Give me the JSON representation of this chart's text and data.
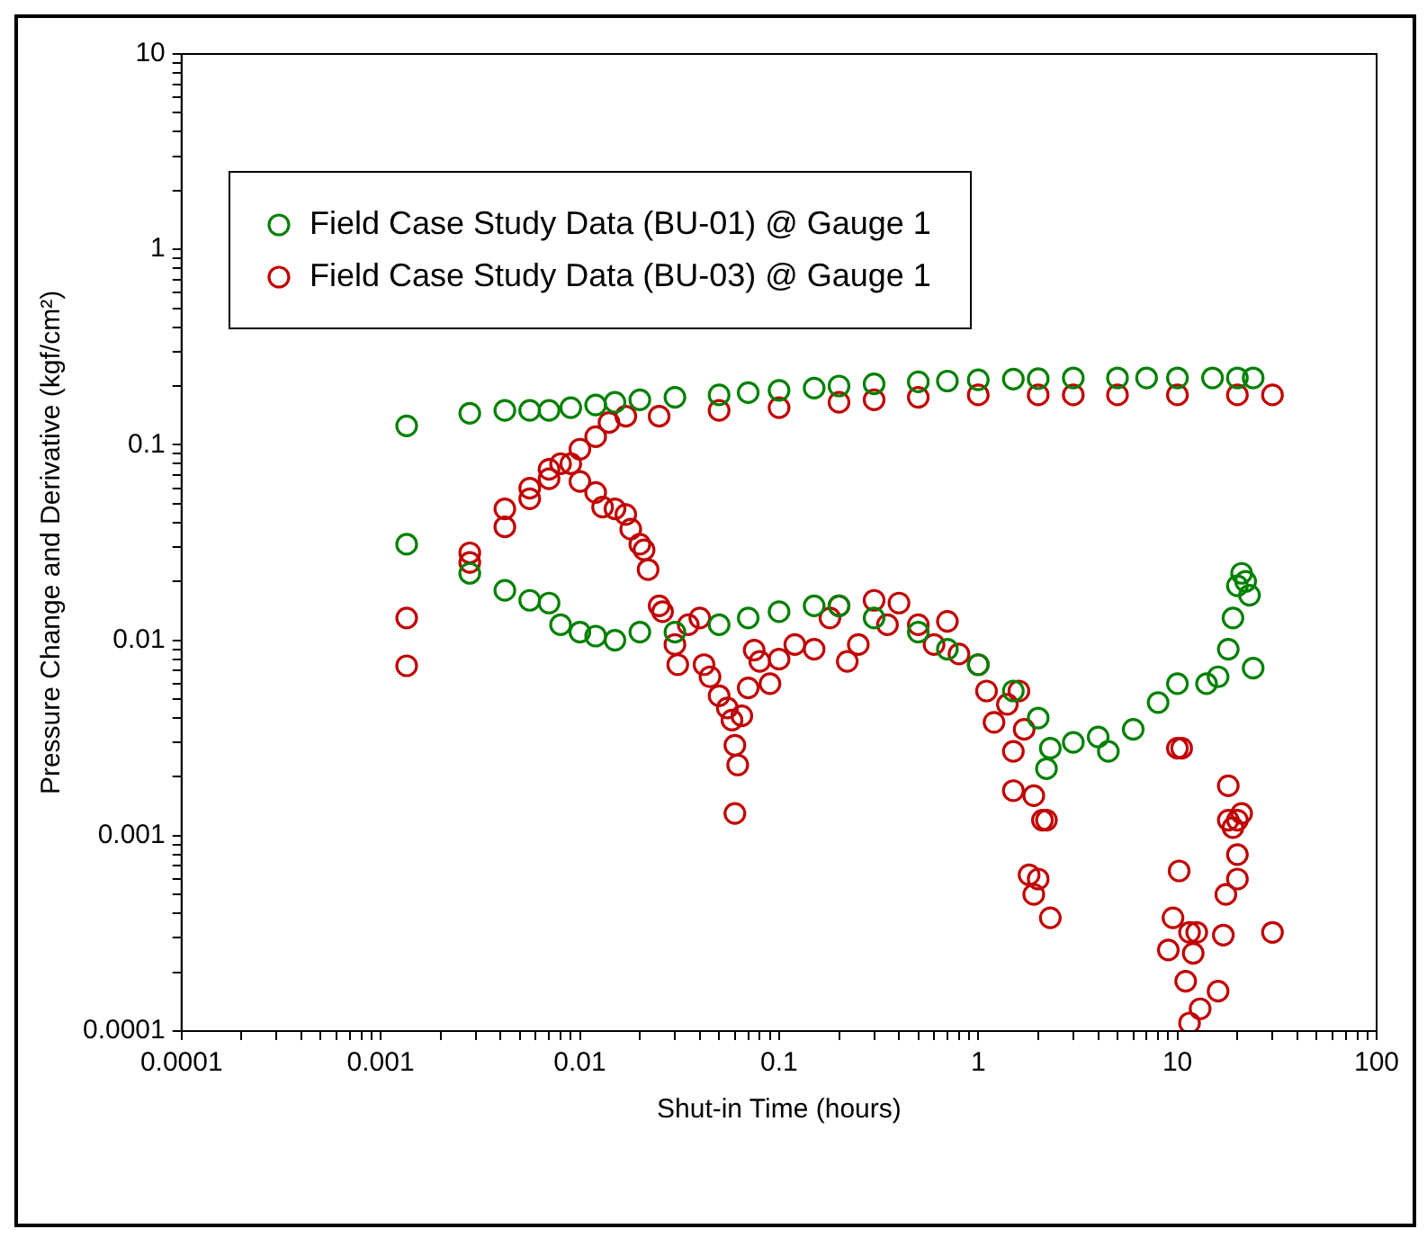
{
  "chart_data": {
    "type": "scatter",
    "xlabel": "Shut-in Time (hours)",
    "ylabel": "Pressure Change and Derivative (kgf/cm²)",
    "log": "xy",
    "grid": false,
    "legend": "top left",
    "marker": "circle",
    "xlim": [
      0.0001,
      100
    ],
    "ylim": [
      0.0001,
      10
    ],
    "xticks": [
      0.0001,
      {
        "value": 0.0002,
        "label": null
      },
      {
        "value": 0.0003,
        "label": null
      },
      {
        "value": 0.0004,
        "label": null
      },
      {
        "value": 0.0005,
        "label": null
      },
      {
        "value": 0.0006,
        "label": null
      },
      {
        "value": 0.0007,
        "label": null
      },
      {
        "value": 0.0008,
        "label": null
      },
      {
        "value": 0.0009,
        "label": null
      },
      0.001,
      {
        "value": 0.002,
        "label": null
      },
      {
        "value": 0.003,
        "label": null
      },
      {
        "value": 0.004,
        "label": null
      },
      {
        "value": 0.005,
        "label": null
      },
      {
        "value": 0.006,
        "label": null
      },
      {
        "value": 0.007,
        "label": null
      },
      {
        "value": 0.008,
        "label": null
      },
      {
        "value": 0.009,
        "label": null
      },
      0.01,
      {
        "value": 0.02,
        "label": null
      },
      {
        "value": 0.03,
        "label": null
      },
      {
        "value": 0.04,
        "label": null
      },
      {
        "value": 0.05,
        "label": null
      },
      {
        "value": 0.06,
        "label": null
      },
      {
        "value": 0.07,
        "label": null
      },
      {
        "value": 0.08,
        "label": null
      },
      {
        "value": 0.09,
        "label": null
      },
      0.1,
      {
        "value": 0.2,
        "label": null
      },
      {
        "value": 0.3,
        "label": null
      },
      {
        "value": 0.4,
        "label": null
      },
      {
        "value": 0.5,
        "label": null
      },
      {
        "value": 0.6,
        "label": null
      },
      {
        "value": 0.7,
        "label": null
      },
      {
        "value": 0.8,
        "label": null
      },
      {
        "value": 0.9,
        "label": null
      },
      1,
      {
        "value": 2,
        "label": null
      },
      {
        "value": 3,
        "label": null
      },
      {
        "value": 4,
        "label": null
      },
      {
        "value": 5,
        "label": null
      },
      {
        "value": 6,
        "label": null
      },
      {
        "value": 7,
        "label": null
      },
      {
        "value": 8,
        "label": null
      },
      {
        "value": 9,
        "label": null
      },
      10,
      {
        "value": 20,
        "label": null
      },
      {
        "value": 30,
        "label": null
      },
      {
        "value": 40,
        "label": null
      },
      {
        "value": 50,
        "label": null
      },
      {
        "value": 60,
        "label": null
      },
      {
        "value": 70,
        "label": null
      },
      {
        "value": 80,
        "label": null
      },
      {
        "value": 90,
        "label": null
      },
      100
    ],
    "yticks": [
      0.0001,
      {
        "value": 0.0002,
        "label": null
      },
      {
        "value": 0.0003,
        "label": null
      },
      {
        "value": 0.0004,
        "label": null
      },
      {
        "value": 0.0005,
        "label": null
      },
      {
        "value": 0.0006,
        "label": null
      },
      {
        "value": 0.0007,
        "label": null
      },
      {
        "value": 0.0008,
        "label": null
      },
      {
        "value": 0.0009,
        "label": null
      },
      0.001,
      {
        "value": 0.002,
        "label": null
      },
      {
        "value": 0.003,
        "label": null
      },
      {
        "value": 0.004,
        "label": null
      },
      {
        "value": 0.005,
        "label": null
      },
      {
        "value": 0.006,
        "label": null
      },
      {
        "value": 0.007,
        "label": null
      },
      {
        "value": 0.008,
        "label": null
      },
      {
        "value": 0.009,
        "label": null
      },
      0.01,
      {
        "value": 0.02,
        "label": null
      },
      {
        "value": 0.03,
        "label": null
      },
      {
        "value": 0.04,
        "label": null
      },
      {
        "value": 0.05,
        "label": null
      },
      {
        "value": 0.06,
        "label": null
      },
      {
        "value": 0.07,
        "label": null
      },
      {
        "value": 0.08,
        "label": null
      },
      {
        "value": 0.09,
        "label": null
      },
      0.1,
      {
        "value": 0.2,
        "label": null
      },
      {
        "value": 0.3,
        "label": null
      },
      {
        "value": 0.4,
        "label": null
      },
      {
        "value": 0.5,
        "label": null
      },
      {
        "value": 0.6,
        "label": null
      },
      {
        "value": 0.7,
        "label": null
      },
      {
        "value": 0.8,
        "label": null
      },
      {
        "value": 0.9,
        "label": null
      },
      1,
      {
        "value": 2,
        "label": null
      },
      {
        "value": 3,
        "label": null
      },
      {
        "value": 4,
        "label": null
      },
      {
        "value": 5,
        "label": null
      },
      {
        "value": 6,
        "label": null
      },
      {
        "value": 7,
        "label": null
      },
      {
        "value": 8,
        "label": null
      },
      {
        "value": 9,
        "label": null
      },
      10
    ],
    "series": [
      {
        "name": "Field Case Study Data (BU-01) @ Gauge 1",
        "color": "#008000",
        "x": [
          0.00135,
          0.0028,
          0.0042,
          0.0056,
          0.007,
          0.009,
          0.012,
          0.015,
          0.02,
          0.03,
          0.05,
          0.07,
          0.1,
          0.15,
          0.2,
          0.3,
          0.5,
          0.7,
          1,
          1.5,
          2,
          3,
          5,
          7,
          10,
          15,
          20,
          24,
          0.00135,
          0.0028,
          0.0042,
          0.0056,
          0.007,
          0.008,
          0.01,
          0.012,
          0.015,
          0.02,
          0.03,
          0.05,
          0.07,
          0.1,
          0.15,
          0.2,
          0.3,
          0.5,
          0.7,
          1,
          1.5,
          2,
          2.2,
          2.3,
          3,
          4,
          4.5,
          6,
          8,
          10,
          14,
          16,
          18,
          19,
          20,
          21,
          22,
          23,
          24
        ],
        "values": [
          0.125,
          0.145,
          0.15,
          0.15,
          0.15,
          0.155,
          0.16,
          0.165,
          0.17,
          0.175,
          0.18,
          0.185,
          0.19,
          0.195,
          0.2,
          0.205,
          0.21,
          0.212,
          0.215,
          0.217,
          0.218,
          0.22,
          0.22,
          0.22,
          0.22,
          0.22,
          0.22,
          0.22,
          0.031,
          0.022,
          0.018,
          0.016,
          0.0155,
          0.012,
          0.011,
          0.0105,
          0.01,
          0.011,
          0.011,
          0.012,
          0.013,
          0.014,
          0.015,
          0.015,
          0.013,
          0.011,
          0.009,
          0.0075,
          0.0055,
          0.004,
          0.0022,
          0.0028,
          0.003,
          0.0032,
          0.0027,
          0.0035,
          0.0048,
          0.006,
          0.006,
          0.0065,
          0.009,
          0.013,
          0.019,
          0.022,
          0.02,
          0.017,
          0.0072
        ]
      },
      {
        "name": "Field Case Study Data (BU-03) @ Gauge 1",
        "color": "#c00000",
        "x": [
          0.00135,
          0.00135,
          0.0028,
          0.0028,
          0.0042,
          0.0042,
          0.0056,
          0.0056,
          0.007,
          0.007,
          0.008,
          0.009,
          0.01,
          0.012,
          0.014,
          0.017,
          0.025,
          0.05,
          0.1,
          0.2,
          0.3,
          0.5,
          1,
          2,
          3,
          5,
          10,
          20,
          30,
          0.01,
          0.012,
          0.013,
          0.015,
          0.017,
          0.018,
          0.02,
          0.021,
          0.022,
          0.025,
          0.026,
          0.03,
          0.031,
          0.035,
          0.04,
          0.042,
          0.045,
          0.05,
          0.055,
          0.058,
          0.06,
          0.062,
          0.06,
          0.065,
          0.07,
          0.075,
          0.08,
          0.09,
          0.1,
          0.12,
          0.15,
          0.18,
          0.2,
          0.22,
          0.25,
          0.3,
          0.35,
          0.4,
          0.5,
          0.6,
          0.7,
          0.8,
          1,
          1.1,
          1.2,
          1.4,
          1.5,
          1.6,
          1.7,
          1.5,
          1.9,
          2.1,
          2.2,
          1.8,
          2,
          1.9,
          2.3,
          10,
          10.5,
          10.2,
          9.5,
          9,
          11,
          11.5,
          12,
          12.5,
          11.5,
          13,
          16,
          17,
          17.5,
          18,
          18,
          19,
          20,
          21,
          20,
          20,
          30
        ],
        "values": [
          0.013,
          0.0074,
          0.028,
          0.025,
          0.047,
          0.038,
          0.06,
          0.053,
          0.075,
          0.067,
          0.08,
          0.08,
          0.095,
          0.11,
          0.13,
          0.14,
          0.14,
          0.15,
          0.155,
          0.165,
          0.17,
          0.175,
          0.18,
          0.18,
          0.18,
          0.18,
          0.18,
          0.18,
          0.18,
          0.065,
          0.057,
          0.048,
          0.047,
          0.044,
          0.037,
          0.031,
          0.029,
          0.023,
          0.015,
          0.014,
          0.0095,
          0.0075,
          0.012,
          0.013,
          0.0075,
          0.0065,
          0.0052,
          0.0045,
          0.0039,
          0.0029,
          0.0023,
          0.0013,
          0.0041,
          0.0057,
          0.0089,
          0.0078,
          0.006,
          0.008,
          0.0095,
          0.009,
          0.013,
          0.015,
          0.0078,
          0.0095,
          0.016,
          0.012,
          0.0155,
          0.012,
          0.0095,
          0.0125,
          0.0085,
          0.0075,
          0.0055,
          0.0038,
          0.0047,
          0.0027,
          0.0055,
          0.0035,
          0.0017,
          0.0016,
          0.0012,
          0.0012,
          0.00063,
          0.0006,
          0.0005,
          0.00038,
          0.0028,
          0.0028,
          0.00066,
          0.00038,
          0.00026,
          0.00018,
          0.00032,
          0.00025,
          0.00032,
          0.00011,
          0.00013,
          0.00016,
          0.00031,
          0.0005,
          0.0018,
          0.0012,
          0.0011,
          0.0012,
          0.0013,
          0.0008,
          0.0006,
          0.00032
        ]
      }
    ]
  }
}
